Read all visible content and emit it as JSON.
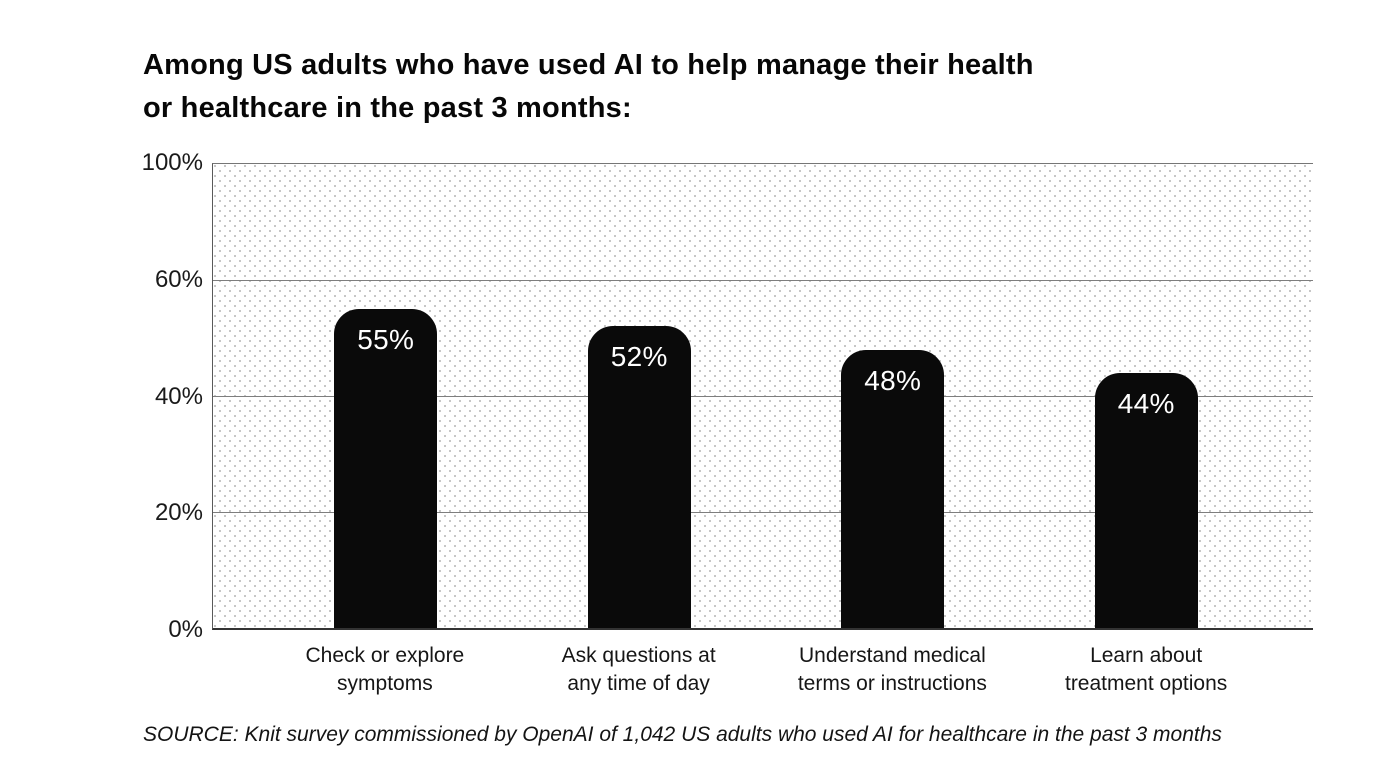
{
  "title": {
    "line1": "Among US adults who have used AI to help manage their health",
    "line2": "or healthcare in the past 3 months:"
  },
  "source": "SOURCE: Knit survey commissioned by OpenAI of 1,042 US adults who used AI for healthcare in the past 3 months",
  "colors": {
    "bar": "#0a0a0a",
    "bar_value_text": "#ffffff",
    "grid_line": "#7e7e7e",
    "axis_text": "#1a1a1a",
    "plot_dot_pattern": "#c7c7c7",
    "background": "#ffffff"
  },
  "y_axis": {
    "tick_labels": [
      "100%",
      "60%",
      "40%",
      "20%",
      "0%"
    ]
  },
  "chart_data": {
    "type": "bar",
    "title": "Among US adults who have used AI to help manage their health or healthcare in the past 3 months:",
    "categories": [
      "Check or explore symptoms",
      "Ask questions at any time of day",
      "Understand medical terms or instructions",
      "Learn about treatment options"
    ],
    "category_lines": [
      [
        "Check or explore",
        "symptoms"
      ],
      [
        "Ask questions at",
        "any time of day"
      ],
      [
        "Understand medical",
        "terms or instructions"
      ],
      [
        "Learn about",
        "treatment options"
      ]
    ],
    "values": [
      55,
      52,
      48,
      44
    ],
    "value_labels": [
      "55%",
      "52%",
      "48%",
      "44%"
    ],
    "xlabel": "",
    "ylabel": "",
    "y_tick_labels": [
      "0%",
      "20%",
      "40%",
      "60%",
      "100%"
    ],
    "y_axis_note": "80% label omitted; 100% sits one even grid step above 60% (top segment compressed), bars scaled to the 0-60 linear portion",
    "grid": true,
    "legend": false,
    "bar_color": "#0a0a0a",
    "value_label_position": "inside-top",
    "background_pattern": "dotted",
    "source": "SOURCE: Knit survey commissioned by OpenAI of 1,042 US adults who used AI for healthcare in the past 3 months"
  }
}
